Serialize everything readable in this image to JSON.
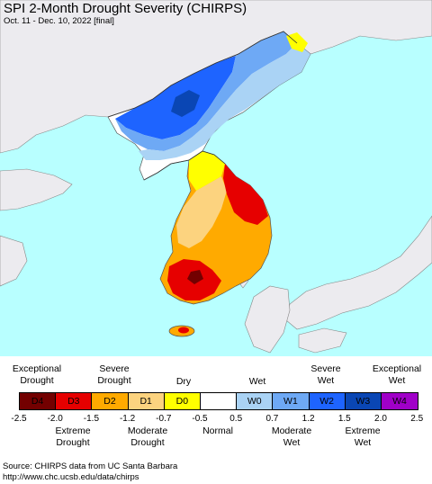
{
  "title": "SPI 2-Month Drought Severity (CHIRPS)",
  "subtitle": "Oct. 11 - Dec. 10, 2022 [final]",
  "colors": {
    "ocean": "#b8ffff",
    "land_outside": "#ecebef",
    "normal": "#ffffff",
    "D4": "#730000",
    "D3": "#e60000",
    "D2": "#ffaa00",
    "D1": "#fcd37f",
    "D0": "#ffff00",
    "W0": "#aad3f5",
    "W1": "#6ea9f5",
    "W2": "#1e64ff",
    "W3": "#0a46b4",
    "W4": "#a000c8"
  },
  "legend": {
    "swatches": [
      {
        "code": "D4",
        "color": "#730000"
      },
      {
        "code": "D3",
        "color": "#e60000"
      },
      {
        "code": "D2",
        "color": "#ffaa00"
      },
      {
        "code": "D1",
        "color": "#fcd37f"
      },
      {
        "code": "D0",
        "color": "#ffff00"
      },
      {
        "code": "",
        "color": "#ffffff"
      },
      {
        "code": "W0",
        "color": "#aad3f5"
      },
      {
        "code": "W1",
        "color": "#6ea9f5"
      },
      {
        "code": "W2",
        "color": "#1e64ff"
      },
      {
        "code": "W3",
        "color": "#0a46b4"
      },
      {
        "code": "W4",
        "color": "#a000c8"
      }
    ],
    "top_labels": {
      "exceptional_drought": "Exceptional\nDrought",
      "severe_drought": "Severe\nDrought",
      "dry": "Dry",
      "wet": "Wet",
      "severe_wet": "Severe\nWet",
      "exceptional_wet": "Exceptional\nWet"
    },
    "bottom_labels": {
      "extreme_drought": "Extreme\nDrought",
      "moderate_drought": "Moderate\nDrought",
      "normal": "Normal",
      "moderate_wet": "Moderate\nWet",
      "extreme_wet": "Extreme\nWet"
    },
    "ticks": [
      "-2.5",
      "-2.0",
      "-1.5",
      "-1.2",
      "-0.7",
      "-0.5",
      "0.5",
      "0.7",
      "1.2",
      "1.5",
      "2.0",
      "2.5"
    ]
  },
  "source": {
    "line1": "Source: CHIRPS data from UC Santa Barbara",
    "line2": "http://www.chc.ucsb.edu/data/chirps"
  }
}
